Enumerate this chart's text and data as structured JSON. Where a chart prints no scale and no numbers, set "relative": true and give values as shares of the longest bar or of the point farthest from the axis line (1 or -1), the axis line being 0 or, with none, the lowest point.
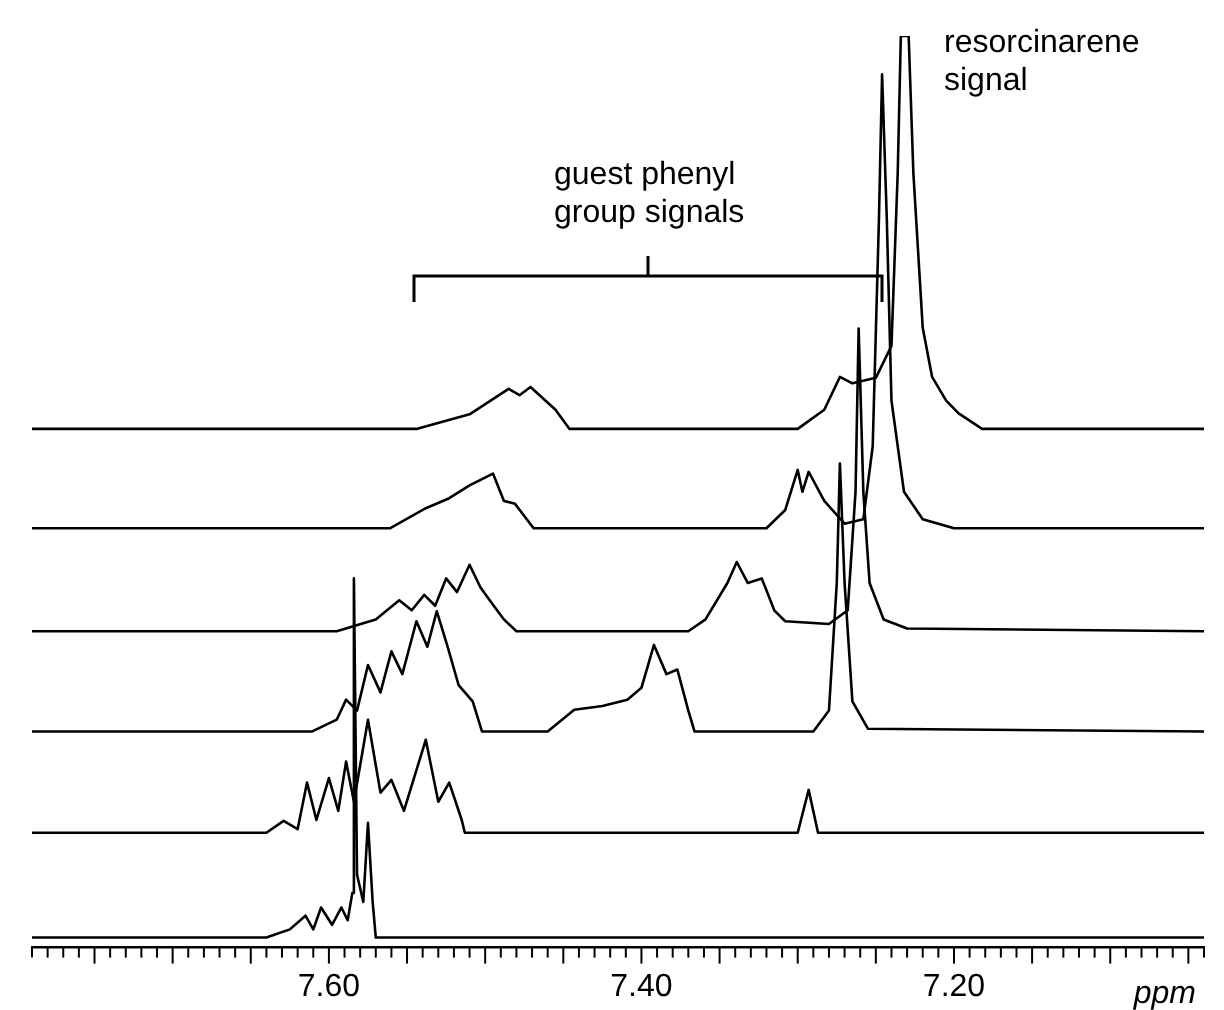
{
  "chart_data": {
    "type": "line",
    "relative": true,
    "xlabel": "ppm",
    "xlim": [
      7.79,
      7.04
    ],
    "tick_labels": "x",
    "marker": "none",
    "xticks": [
      {
        "value": 7.79,
        "label": null
      },
      {
        "value": 7.78,
        "label": null
      },
      {
        "value": 7.77,
        "label": null
      },
      {
        "value": 7.76,
        "label": null
      },
      {
        "value": 7.75,
        "label": null
      },
      {
        "value": 7.74,
        "label": null
      },
      {
        "value": 7.73,
        "label": null
      },
      {
        "value": 7.72,
        "label": null
      },
      {
        "value": 7.71,
        "label": null
      },
      {
        "value": 7.7,
        "label": null
      },
      {
        "value": 7.69,
        "label": null
      },
      {
        "value": 7.68,
        "label": null
      },
      {
        "value": 7.67,
        "label": null
      },
      {
        "value": 7.66,
        "label": null
      },
      {
        "value": 7.65,
        "label": null
      },
      {
        "value": 7.64,
        "label": null
      },
      {
        "value": 7.63,
        "label": null
      },
      {
        "value": 7.62,
        "label": null
      },
      {
        "value": 7.61,
        "label": null
      },
      {
        "value": 7.6,
        "label": "7.60"
      },
      {
        "value": 7.59,
        "label": null
      },
      {
        "value": 7.58,
        "label": null
      },
      {
        "value": 7.57,
        "label": null
      },
      {
        "value": 7.56,
        "label": null
      },
      {
        "value": 7.55,
        "label": null
      },
      {
        "value": 7.54,
        "label": null
      },
      {
        "value": 7.53,
        "label": null
      },
      {
        "value": 7.52,
        "label": null
      },
      {
        "value": 7.51,
        "label": null
      },
      {
        "value": 7.5,
        "label": null
      },
      {
        "value": 7.49,
        "label": null
      },
      {
        "value": 7.48,
        "label": null
      },
      {
        "value": 7.47,
        "label": null
      },
      {
        "value": 7.46,
        "label": null
      },
      {
        "value": 7.45,
        "label": null
      },
      {
        "value": 7.44,
        "label": null
      },
      {
        "value": 7.43,
        "label": null
      },
      {
        "value": 7.42,
        "label": null
      },
      {
        "value": 7.41,
        "label": null
      },
      {
        "value": 7.4,
        "label": "7.40"
      },
      {
        "value": 7.39,
        "label": null
      },
      {
        "value": 7.38,
        "label": null
      },
      {
        "value": 7.37,
        "label": null
      },
      {
        "value": 7.36,
        "label": null
      },
      {
        "value": 7.35,
        "label": null
      },
      {
        "value": 7.34,
        "label": null
      },
      {
        "value": 7.33,
        "label": null
      },
      {
        "value": 7.32,
        "label": null
      },
      {
        "value": 7.31,
        "label": null
      },
      {
        "value": 7.3,
        "label": null
      },
      {
        "value": 7.29,
        "label": null
      },
      {
        "value": 7.28,
        "label": null
      },
      {
        "value": 7.27,
        "label": null
      },
      {
        "value": 7.26,
        "label": null
      },
      {
        "value": 7.25,
        "label": null
      },
      {
        "value": 7.24,
        "label": null
      },
      {
        "value": 7.23,
        "label": null
      },
      {
        "value": 7.22,
        "label": null
      },
      {
        "value": 7.21,
        "label": null
      },
      {
        "value": 7.2,
        "label": "7.20"
      },
      {
        "value": 7.19,
        "label": null
      },
      {
        "value": 7.18,
        "label": null
      },
      {
        "value": 7.17,
        "label": null
      },
      {
        "value": 7.16,
        "label": null
      },
      {
        "value": 7.15,
        "label": null
      },
      {
        "value": 7.14,
        "label": null
      },
      {
        "value": 7.13,
        "label": null
      },
      {
        "value": 7.12,
        "label": null
      },
      {
        "value": 7.11,
        "label": null
      },
      {
        "value": 7.1,
        "label": null
      },
      {
        "value": 7.09,
        "label": null
      },
      {
        "value": 7.08,
        "label": null
      },
      {
        "value": 7.07,
        "label": null
      },
      {
        "value": 7.06,
        "label": null
      },
      {
        "value": 7.05,
        "label": null
      },
      {
        "value": 7.04,
        "label": null
      }
    ],
    "annotations": [
      "guest phenyl group signals",
      "resorcinarene signal"
    ],
    "series": [
      {
        "color": "#000000",
        "x": [
          7.79,
          7.544,
          7.51,
          7.485,
          7.478,
          7.471,
          7.455,
          7.446,
          7.3,
          7.283,
          7.273,
          7.265,
          7.25,
          7.24,
          7.236,
          7.234,
          7.229,
          7.226,
          7.22,
          7.214,
          7.205,
          7.197,
          7.182,
          7.04
        ],
        "values": [
          0.569,
          0.569,
          0.585,
          0.613,
          0.606,
          0.615,
          0.59,
          0.569,
          0.569,
          0.59,
          0.626,
          0.619,
          0.625,
          0.66,
          0.85,
          1.0,
          1.0,
          0.85,
          0.68,
          0.626,
          0.6,
          0.586,
          0.569,
          0.569
        ]
      },
      {
        "color": "#000000",
        "x": [
          7.79,
          7.561,
          7.538,
          7.523,
          7.51,
          7.495,
          7.488,
          7.481,
          7.469,
          7.32,
          7.308,
          7.3,
          7.297,
          7.293,
          7.283,
          7.27,
          7.258,
          7.252,
          7.248,
          7.246,
          7.243,
          7.24,
          7.232,
          7.22,
          7.2,
          7.04
        ],
        "values": [
          0.46,
          0.46,
          0.482,
          0.493,
          0.507,
          0.52,
          0.49,
          0.487,
          0.46,
          0.46,
          0.48,
          0.524,
          0.5,
          0.522,
          0.49,
          0.465,
          0.47,
          0.55,
          0.8,
          0.958,
          0.8,
          0.6,
          0.5,
          0.47,
          0.46,
          0.46
        ]
      },
      {
        "color": "#000000",
        "x": [
          7.79,
          7.595,
          7.57,
          7.555,
          7.547,
          7.539,
          7.532,
          7.525,
          7.518,
          7.51,
          7.503,
          7.495,
          7.488,
          7.48,
          7.37,
          7.359,
          7.345,
          7.339,
          7.332,
          7.323,
          7.315,
          7.308,
          7.28,
          7.268,
          7.263,
          7.261,
          7.258,
          7.254,
          7.245,
          7.23,
          7.04
        ],
        "values": [
          0.347,
          0.347,
          0.36,
          0.381,
          0.37,
          0.387,
          0.375,
          0.405,
          0.39,
          0.42,
          0.395,
          0.376,
          0.36,
          0.347,
          0.347,
          0.36,
          0.4,
          0.423,
          0.4,
          0.405,
          0.37,
          0.358,
          0.355,
          0.37,
          0.5,
          0.679,
          0.5,
          0.4,
          0.36,
          0.35,
          0.347
        ]
      },
      {
        "color": "#000000",
        "x": [
          7.79,
          7.611,
          7.595,
          7.589,
          7.582,
          7.575,
          7.567,
          7.56,
          7.553,
          7.544,
          7.537,
          7.531,
          7.524,
          7.517,
          7.508,
          7.502,
          7.46,
          7.443,
          7.425,
          7.409,
          7.4,
          7.392,
          7.384,
          7.377,
          7.37,
          7.366,
          7.29,
          7.28,
          7.275,
          7.273,
          7.27,
          7.265,
          7.255,
          7.04
        ],
        "values": [
          0.237,
          0.237,
          0.25,
          0.272,
          0.26,
          0.31,
          0.28,
          0.325,
          0.3,
          0.358,
          0.33,
          0.369,
          0.33,
          0.288,
          0.27,
          0.237,
          0.237,
          0.261,
          0.265,
          0.272,
          0.285,
          0.332,
          0.3,
          0.305,
          0.26,
          0.237,
          0.237,
          0.26,
          0.4,
          0.531,
          0.4,
          0.27,
          0.24,
          0.237
        ]
      },
      {
        "color": "#000000",
        "x": [
          7.79,
          7.64,
          7.629,
          7.62,
          7.614,
          7.608,
          7.6,
          7.594,
          7.589,
          7.584,
          7.575,
          7.567,
          7.56,
          7.552,
          7.538,
          7.53,
          7.523,
          7.515,
          7.513,
          7.3,
          7.293,
          7.287,
          7.04
        ],
        "values": [
          0.126,
          0.126,
          0.139,
          0.13,
          0.181,
          0.14,
          0.186,
          0.15,
          0.204,
          0.16,
          0.25,
          0.17,
          0.184,
          0.15,
          0.228,
          0.16,
          0.181,
          0.14,
          0.126,
          0.126,
          0.173,
          0.126,
          0.126
        ]
      },
      {
        "color": "#000000",
        "x": [
          7.79,
          7.64,
          7.625,
          7.615,
          7.61,
          7.605,
          7.598,
          7.592,
          7.588,
          7.585,
          7.584,
          7.582,
          7.578,
          7.575,
          7.572,
          7.57,
          7.04
        ],
        "values": [
          0.011,
          0.011,
          0.02,
          0.035,
          0.02,
          0.044,
          0.025,
          0.044,
          0.03,
          0.06,
          0.405,
          0.08,
          0.05,
          0.137,
          0.05,
          0.011,
          0.011
        ]
      }
    ]
  }
}
